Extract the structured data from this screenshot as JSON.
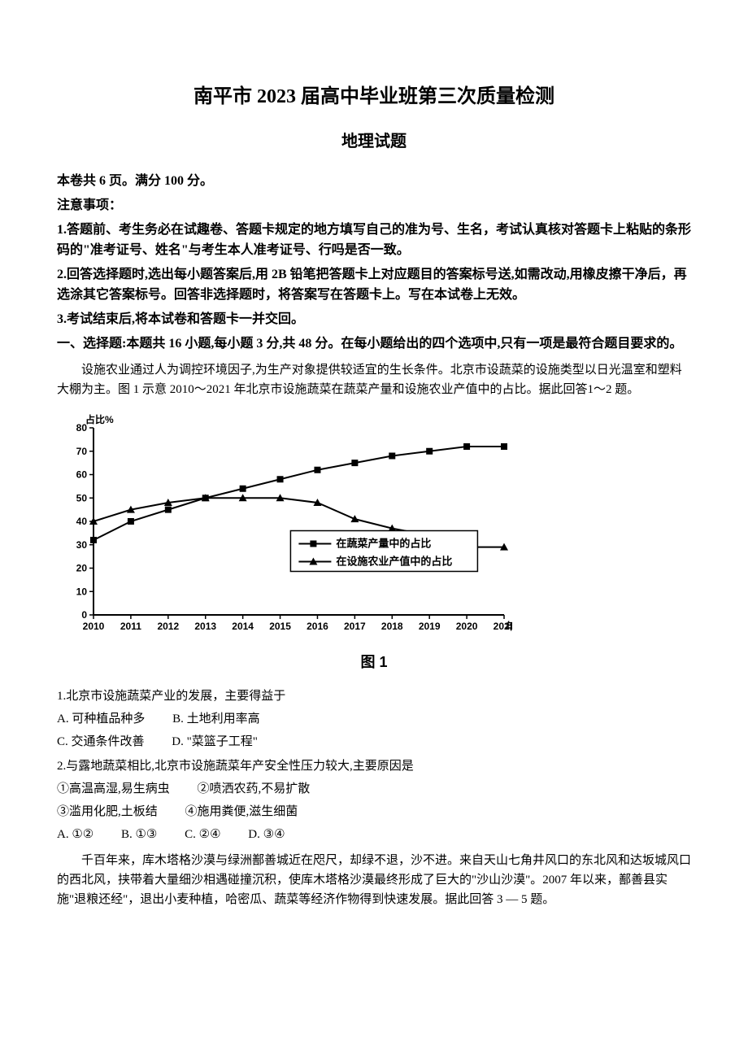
{
  "header": {
    "title_main": "南平市 2023 届高中毕业班第三次质量检测",
    "title_sub": "地理试题"
  },
  "info": {
    "line1": "本卷共 6 页。满分 100 分。",
    "notice_head": "注意事项：",
    "notice1": "1.答题前、考生务必在试趣卷、答题卡规定的地方填写自己的准为号、生名，考试认真核对答题卡上粘贴的条形码的\"准考证号、姓名\"与考生本人准考证号、行吗是否一致。",
    "notice2": "2.回答选择题时,选出每小题答案后,用 2B 铅笔把答题卡上对应题目的答案标号送,如需改动,用橡皮擦干净后，再选涂其它答案标号。回答非选择题时，将答案写在答题卡上。写在本试卷上无效。",
    "notice3": "3.考试结束后,将本试卷和答题卡一并交回。",
    "section_head": "一、选择题:本题共 16 小题,每小题 3 分,共 48 分。在每小题给出的四个选项中,只有一项是最符合题目要求的。"
  },
  "passage1": "设施农业通过人为调控环境因子,为生产对象提供较适宜的生长条件。北京市设蔬菜的设施类型以日光温室和塑料大棚为主。图 1 示意 2010～2021 年北京市设施蔬菜在蔬菜产量和设施农业产值中的占比。据此回答1～2 题。",
  "chart": {
    "type": "line",
    "y_axis_label": "占比%",
    "x_axis_label": "年份",
    "x_categories": [
      "2010",
      "2011",
      "2012",
      "2013",
      "2014",
      "2015",
      "2016",
      "2017",
      "2018",
      "2019",
      "2020",
      "2021"
    ],
    "y_ticks": [
      0,
      10,
      20,
      30,
      40,
      50,
      60,
      70,
      80
    ],
    "series": [
      {
        "name": "在蔬菜产量中的占比",
        "marker": "square",
        "color": "#000000",
        "values": [
          32,
          40,
          45,
          50,
          54,
          58,
          62,
          65,
          68,
          70,
          72,
          72
        ]
      },
      {
        "name": "在设施农业产值中的占比",
        "marker": "triangle",
        "color": "#000000",
        "values": [
          40,
          45,
          48,
          50,
          50,
          50,
          48,
          41,
          37,
          34,
          29,
          29
        ]
      }
    ],
    "background_color": "#ffffff",
    "axis_color": "#000000",
    "line_width": 2,
    "label_fontsize": 12,
    "legend_box": true,
    "caption": "图 1"
  },
  "q1": {
    "stem": "1.北京市设施蔬菜产业的发展，主要得益于",
    "optA": "A. 可种植品种多",
    "optB": "B. 土地利用率高",
    "optC": "C. 交通条件改善",
    "optD": "D. \"菜篮子工程\""
  },
  "q2": {
    "stem": "2.与露地蔬菜相比,北京市设施蔬菜年产安全性压力较大,主要原因是",
    "s1": "①高温高湿,易生病虫",
    "s2": "②喷洒农药,不易扩散",
    "s3": "③滥用化肥,土板结",
    "s4": "④施用粪便,滋生细菌",
    "optA": "A. ①②",
    "optB": "B. ①③",
    "optC": "C. ②④",
    "optD": "D. ③④"
  },
  "passage2": "千百年来，库木塔格沙漠与绿洲鄯善城近在咫尺，却绿不退，沙不进。来自天山七角井风口的东北风和达坂城风口的西北风，挟带着大量细沙相遇碰撞沉积，使库木塔格沙漠最终形成了巨大的\"沙山沙漠\"。2007 年以来，鄯善县实施\"退粮还经\"，退出小麦种植，哈密瓜、蔬菜等经济作物得到快速发展。据此回答 3 — 5 题。"
}
